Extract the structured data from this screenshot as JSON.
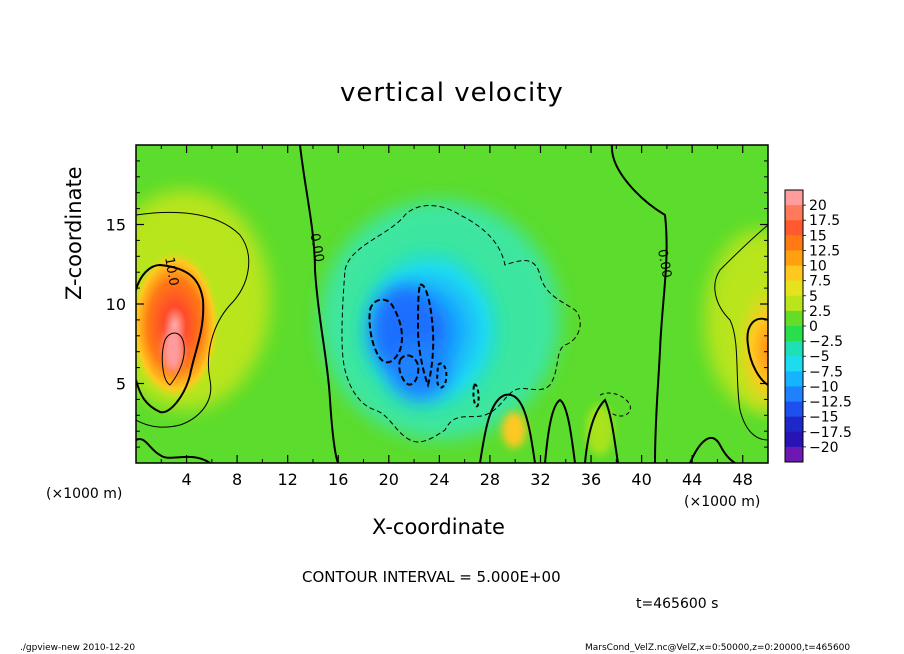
{
  "chart_data": {
    "type": "heatmap",
    "title": "vertical velocity",
    "xlabel": "X-coordinate",
    "ylabel": "Z-coordinate",
    "x_unit": "(×1000 m)",
    "xlim": [
      0,
      50
    ],
    "ylim": [
      0,
      20
    ],
    "x_ticks": [
      4,
      8,
      12,
      16,
      20,
      24,
      28,
      32,
      36,
      40,
      44,
      48
    ],
    "y_ticks": [
      5,
      10,
      15
    ],
    "contour_interval_text": "CONTOUR INTERVAL = 5.000E+00",
    "time_text": "t=465600 s",
    "contour_labels": [
      {
        "text": "10.0",
        "x": 2.5,
        "z": 12
      },
      {
        "text": "0.00",
        "x": 14,
        "z": 13.5
      },
      {
        "text": "0.00",
        "x": 41.5,
        "z": 12.5
      }
    ],
    "colorbar": {
      "labels": [
        "20",
        "17.5",
        "15",
        "12.5",
        "10",
        "7.5",
        "5",
        "2.5",
        "0",
        "-2.5",
        "-5",
        "-7.5",
        "-10",
        "-12.5",
        "-15",
        "-17.5",
        "-20"
      ],
      "colors": [
        "#ff9d9d",
        "#ff7a5a",
        "#ff5a2e",
        "#ff7a14",
        "#ffa010",
        "#ffc820",
        "#e6e31c",
        "#b8e51c",
        "#64dc28",
        "#28de4a",
        "#1ee0b4",
        "#1edcf0",
        "#16b4ff",
        "#1e82ff",
        "#1e50f0",
        "#1e28c8",
        "#2814b4",
        "#6e18b4"
      ]
    },
    "features": [
      {
        "name": "updraft-left",
        "x": 3,
        "z": 8,
        "peak": 18
      },
      {
        "name": "downdraft-center",
        "x": 22,
        "z": 8,
        "peak": -12
      },
      {
        "name": "updraft-small",
        "x": 30,
        "z": 2.5,
        "peak": 8
      },
      {
        "name": "updraft-right",
        "x": 49,
        "z": 8,
        "peak": 11
      }
    ]
  },
  "footer": {
    "left": "./gpview-new   2010-12-20",
    "right": "MarsCond_VelZ.nc@VelZ,x=0:50000,z=0:20000,t=465600"
  }
}
